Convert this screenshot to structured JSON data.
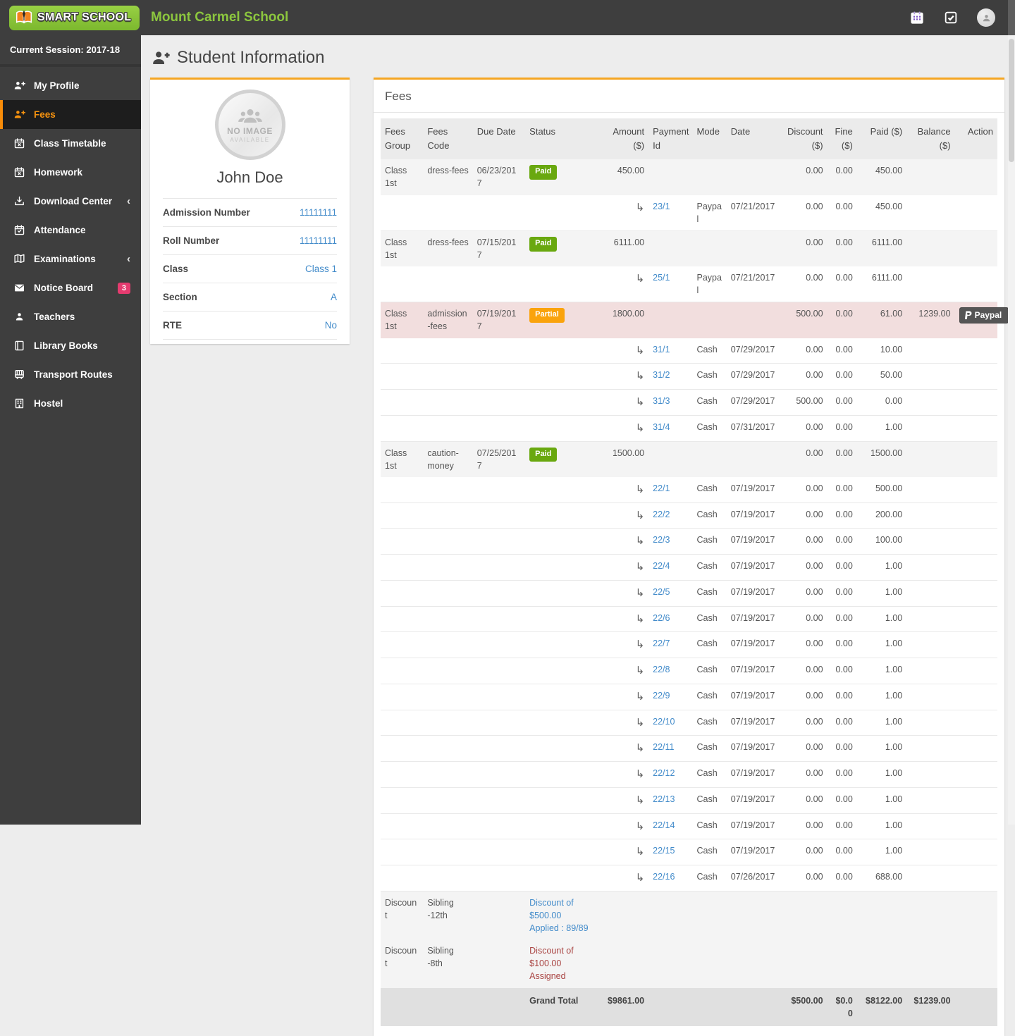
{
  "colors": {
    "accent_orange": "#F5A623",
    "brand_green": "#8CC63E",
    "paid_green": "#69A80F",
    "partial_orange": "#FAA30C",
    "link_blue": "#428BCA",
    "danger_red": "#A94442",
    "notice_badge_pink": "#E53B6F",
    "partial_row_pink": "#F2DEDE",
    "dark_chrome": "#3E3E3E"
  },
  "topbar": {
    "brand": "SMART SCHOOL",
    "school_name": "Mount Carmel School",
    "icons": [
      "calendar-icon",
      "tasks-icon",
      "profile-avatar"
    ]
  },
  "sidebar": {
    "session_label": "Current Session: 2017-18",
    "items": [
      {
        "label": "My Profile",
        "icon": "user-plus",
        "active": false
      },
      {
        "label": "Fees",
        "icon": "user-fees",
        "active": true
      },
      {
        "label": "Class Timetable",
        "icon": "calendar-x",
        "active": false
      },
      {
        "label": "Homework",
        "icon": "calendar-x",
        "active": false
      },
      {
        "label": "Download Center",
        "icon": "download",
        "active": false,
        "has_submenu": true
      },
      {
        "label": "Attendance",
        "icon": "calendar-check",
        "active": false
      },
      {
        "label": "Examinations",
        "icon": "map-book",
        "active": false,
        "has_submenu": true
      },
      {
        "label": "Notice Board",
        "icon": "envelope",
        "active": false,
        "badge": "3"
      },
      {
        "label": "Teachers",
        "icon": "user",
        "active": false
      },
      {
        "label": "Library Books",
        "icon": "book",
        "active": false
      },
      {
        "label": "Transport Routes",
        "icon": "bus",
        "active": false
      },
      {
        "label": "Hostel",
        "icon": "building",
        "active": false
      }
    ]
  },
  "page": {
    "title": "Student Information"
  },
  "student": {
    "name": "John Doe",
    "no_image": {
      "line1": "NO IMAGE",
      "line2": "AVAILABLE"
    },
    "fields": [
      {
        "label": "Admission Number",
        "value": "11111111"
      },
      {
        "label": "Roll Number",
        "value": "11111111"
      },
      {
        "label": "Class",
        "value": "Class 1"
      },
      {
        "label": "Section",
        "value": "A"
      },
      {
        "label": "RTE",
        "value": "No"
      }
    ]
  },
  "fees": {
    "title": "Fees",
    "columns": [
      "Fees Group",
      "Fees Code",
      "Due Date",
      "Status",
      "Amount ($)",
      "Payment Id",
      "Mode",
      "Date",
      "Discount ($)",
      "Fine ($)",
      "Paid ($)",
      "Balance ($)",
      "Action"
    ],
    "rows": [
      {
        "type": "fee",
        "group": "Class 1st",
        "code": "dress-fees",
        "due": "06/23/2017",
        "status": "Paid",
        "badge": "paid",
        "amount": "450.00",
        "discount": "0.00",
        "fine": "0.00",
        "paid": "450.00",
        "balance": ""
      },
      {
        "type": "payment",
        "id": "23/1",
        "mode": "Paypal",
        "date": "07/21/2017",
        "discount": "0.00",
        "fine": "0.00",
        "paid": "450.00"
      },
      {
        "type": "fee",
        "group": "Class 1st",
        "code": "dress-fees",
        "due": "07/15/2017",
        "status": "Paid",
        "badge": "paid",
        "amount": "6111.00",
        "discount": "0.00",
        "fine": "0.00",
        "paid": "6111.00",
        "balance": ""
      },
      {
        "type": "payment",
        "id": "25/1",
        "mode": "Paypal",
        "date": "07/21/2017",
        "discount": "0.00",
        "fine": "0.00",
        "paid": "6111.00"
      },
      {
        "type": "fee",
        "group": "Class 1st",
        "code": "admission-fees",
        "due": "07/19/2017",
        "status": "Partial",
        "badge": "partial",
        "amount": "1800.00",
        "discount": "500.00",
        "fine": "0.00",
        "paid": "61.00",
        "balance": "1239.00",
        "action": "Paypal",
        "highlight": true
      },
      {
        "type": "payment",
        "id": "31/1",
        "mode": "Cash",
        "date": "07/29/2017",
        "discount": "0.00",
        "fine": "0.00",
        "paid": "10.00"
      },
      {
        "type": "payment",
        "id": "31/2",
        "mode": "Cash",
        "date": "07/29/2017",
        "discount": "0.00",
        "fine": "0.00",
        "paid": "50.00"
      },
      {
        "type": "payment",
        "id": "31/3",
        "mode": "Cash",
        "date": "07/29/2017",
        "discount": "500.00",
        "fine": "0.00",
        "paid": "0.00"
      },
      {
        "type": "payment",
        "id": "31/4",
        "mode": "Cash",
        "date": "07/31/2017",
        "discount": "0.00",
        "fine": "0.00",
        "paid": "1.00"
      },
      {
        "type": "fee",
        "group": "Class 1st",
        "code": "caution-money",
        "due": "07/25/2017",
        "status": "Paid",
        "badge": "paid",
        "amount": "1500.00",
        "discount": "0.00",
        "fine": "0.00",
        "paid": "1500.00",
        "balance": ""
      },
      {
        "type": "payment",
        "id": "22/1",
        "mode": "Cash",
        "date": "07/19/2017",
        "discount": "0.00",
        "fine": "0.00",
        "paid": "500.00"
      },
      {
        "type": "payment",
        "id": "22/2",
        "mode": "Cash",
        "date": "07/19/2017",
        "discount": "0.00",
        "fine": "0.00",
        "paid": "200.00"
      },
      {
        "type": "payment",
        "id": "22/3",
        "mode": "Cash",
        "date": "07/19/2017",
        "discount": "0.00",
        "fine": "0.00",
        "paid": "100.00"
      },
      {
        "type": "payment",
        "id": "22/4",
        "mode": "Cash",
        "date": "07/19/2017",
        "discount": "0.00",
        "fine": "0.00",
        "paid": "1.00"
      },
      {
        "type": "payment",
        "id": "22/5",
        "mode": "Cash",
        "date": "07/19/2017",
        "discount": "0.00",
        "fine": "0.00",
        "paid": "1.00"
      },
      {
        "type": "payment",
        "id": "22/6",
        "mode": "Cash",
        "date": "07/19/2017",
        "discount": "0.00",
        "fine": "0.00",
        "paid": "1.00"
      },
      {
        "type": "payment",
        "id": "22/7",
        "mode": "Cash",
        "date": "07/19/2017",
        "discount": "0.00",
        "fine": "0.00",
        "paid": "1.00"
      },
      {
        "type": "payment",
        "id": "22/8",
        "mode": "Cash",
        "date": "07/19/2017",
        "discount": "0.00",
        "fine": "0.00",
        "paid": "1.00"
      },
      {
        "type": "payment",
        "id": "22/9",
        "mode": "Cash",
        "date": "07/19/2017",
        "discount": "0.00",
        "fine": "0.00",
        "paid": "1.00"
      },
      {
        "type": "payment",
        "id": "22/10",
        "mode": "Cash",
        "date": "07/19/2017",
        "discount": "0.00",
        "fine": "0.00",
        "paid": "1.00"
      },
      {
        "type": "payment",
        "id": "22/11",
        "mode": "Cash",
        "date": "07/19/2017",
        "discount": "0.00",
        "fine": "0.00",
        "paid": "1.00"
      },
      {
        "type": "payment",
        "id": "22/12",
        "mode": "Cash",
        "date": "07/19/2017",
        "discount": "0.00",
        "fine": "0.00",
        "paid": "1.00"
      },
      {
        "type": "payment",
        "id": "22/13",
        "mode": "Cash",
        "date": "07/19/2017",
        "discount": "0.00",
        "fine": "0.00",
        "paid": "1.00"
      },
      {
        "type": "payment",
        "id": "22/14",
        "mode": "Cash",
        "date": "07/19/2017",
        "discount": "0.00",
        "fine": "0.00",
        "paid": "1.00"
      },
      {
        "type": "payment",
        "id": "22/15",
        "mode": "Cash",
        "date": "07/19/2017",
        "discount": "0.00",
        "fine": "0.00",
        "paid": "1.00"
      },
      {
        "type": "payment",
        "id": "22/16",
        "mode": "Cash",
        "date": "07/26/2017",
        "discount": "0.00",
        "fine": "0.00",
        "paid": "688.00"
      },
      {
        "type": "discount",
        "group": "Discount",
        "code": "Sibling -12th",
        "description": "Discount of $500.00 Applied : 89/89",
        "tone": "info"
      },
      {
        "type": "discount",
        "group": "Discount",
        "code": "Sibling -8th",
        "description": "Discount of $100.00 Assigned",
        "tone": "danger"
      },
      {
        "type": "total",
        "label": "Grand Total",
        "amount": "$9861.00",
        "discount": "$500.00",
        "fine": "$0.00",
        "paid": "$8122.00",
        "balance": "$1239.00"
      }
    ]
  }
}
